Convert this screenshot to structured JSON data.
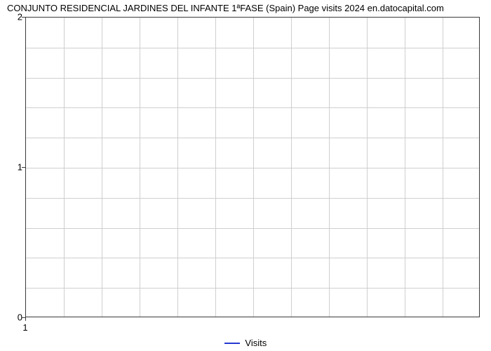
{
  "chart": {
    "type": "line",
    "title": "CONJUNTO RESIDENCIAL JARDINES DEL INFANTE 1ªFASE (Spain) Page visits 2024 en.datocapital.com",
    "title_fontsize": 13,
    "title_color": "#000000",
    "background_color": "#ffffff",
    "plot_border_color": "#3a3a3a",
    "grid_color": "#cfcfcf",
    "x": {
      "lim": [
        1,
        2
      ],
      "major_ticks": [
        1
      ],
      "tick_labels": [
        "1"
      ],
      "minor_grid_count": 11
    },
    "y": {
      "lim": [
        0,
        2
      ],
      "major_ticks": [
        0,
        1,
        2
      ],
      "tick_labels": [
        "0",
        "1",
        "2"
      ],
      "minor_grid_count_per_unit": 5
    },
    "series": [
      {
        "name": "Visits",
        "color": "#2638d0",
        "line_width": 2.5,
        "data_x": [],
        "data_y": []
      }
    ],
    "legend": {
      "position": "bottom-center",
      "label": "Visits",
      "swatch_color": "#2638d0",
      "fontsize": 13
    }
  }
}
